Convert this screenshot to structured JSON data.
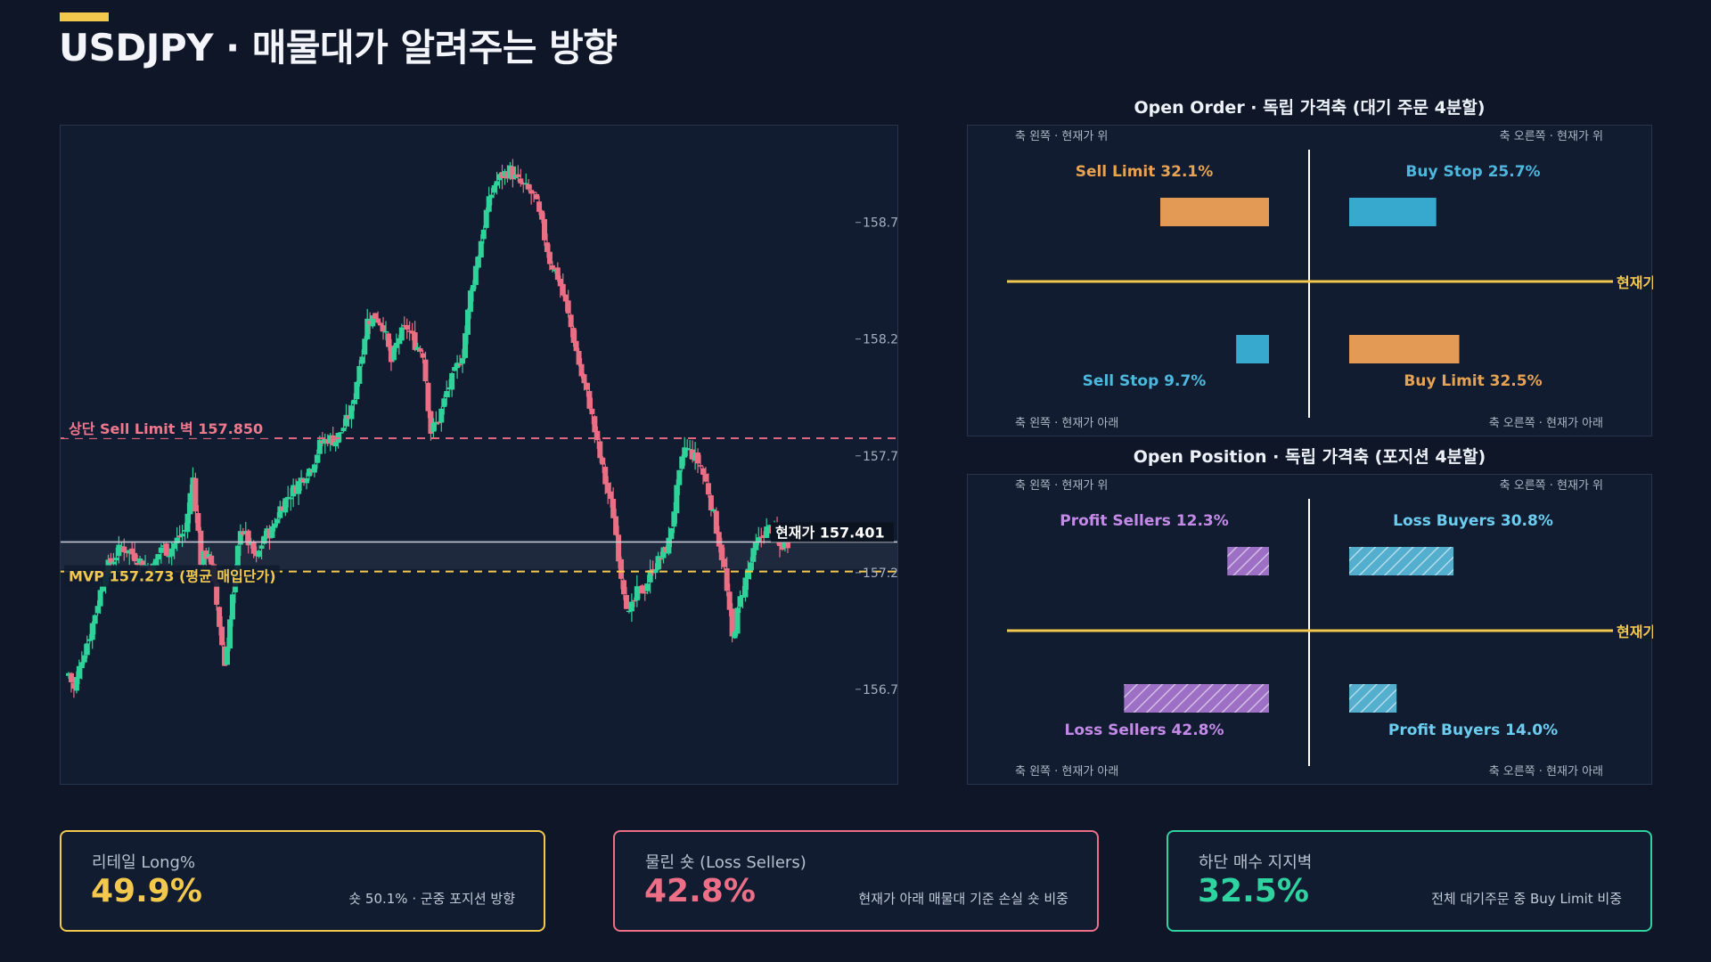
{
  "title": "USDJPY · 매물대가 알려주는 방향",
  "colors": {
    "background": "#0e1627",
    "accent": "#f2c94c",
    "bull": "#2fd39a",
    "bear": "#ea6f84",
    "orange": "#e29a55",
    "blue": "#37a9cf",
    "purple": "#b57ee0",
    "cyan": "#5fc8ea"
  },
  "chart_data": [
    {
      "type": "candlestick",
      "title": "",
      "yticks": [
        "158.785",
        "158.280",
        "157.774",
        "157.268",
        "156.763"
      ],
      "ylim": [
        156.5,
        159.05
      ],
      "current_price": 157.401,
      "current_price_label": "현재가 157.401",
      "sell_wall": 157.85,
      "sell_wall_label": "상단 Sell Limit 벽 157.850",
      "mvp": 157.273,
      "mvp_label": "MVP 157.273 (평균 매입단가)",
      "close_path": [
        156.87,
        156.76,
        156.9,
        157.0,
        157.14,
        157.28,
        157.33,
        157.38,
        157.36,
        157.33,
        157.3,
        157.29,
        157.38,
        157.36,
        157.41,
        157.45,
        157.68,
        157.32,
        157.36,
        157.13,
        156.87,
        157.16,
        157.47,
        157.4,
        157.32,
        157.43,
        157.45,
        157.55,
        157.6,
        157.64,
        157.69,
        157.73,
        157.82,
        157.85,
        157.84,
        157.9,
        157.97,
        158.17,
        158.36,
        158.38,
        158.34,
        158.18,
        158.29,
        158.33,
        158.26,
        158.22,
        157.88,
        157.93,
        158.05,
        158.13,
        158.22,
        158.48,
        158.65,
        158.83,
        158.95,
        158.99,
        159.01,
        158.96,
        158.93,
        158.9,
        158.77,
        158.62,
        158.55,
        158.43,
        158.28,
        158.12,
        158.0,
        157.82,
        157.66,
        157.52,
        157.26,
        157.08,
        157.18,
        157.2,
        157.29,
        157.33,
        157.4,
        157.62,
        157.81,
        157.78,
        157.73,
        157.62,
        157.46,
        157.28,
        156.98,
        157.15,
        157.28,
        157.38,
        157.45,
        157.46,
        157.38,
        157.4
      ]
    },
    {
      "type": "quadrant-bar",
      "title": "Open Order · 독립 가격축 (대기 주문 4분할)",
      "corner_labels": {
        "top_left": "축 왼쪽 · 현재가 위",
        "top_right": "축 오른쪽 · 현재가 위",
        "bottom_left": "축 왼쪽 · 현재가 아래",
        "bottom_right": "축 오른쪽 · 현재가 아래"
      },
      "axis_label": "현재가",
      "quadrants": {
        "top_left": {
          "name": "Sell Limit",
          "value": 32.1,
          "label": "Sell Limit 32.1%",
          "color": "#e29a55",
          "label_color": "#e7a352"
        },
        "top_right": {
          "name": "Buy Stop",
          "value": 25.7,
          "label": "Buy Stop 25.7%",
          "color": "#37a9cf",
          "label_color": "#4db8dd"
        },
        "bottom_left": {
          "name": "Sell Stop",
          "value": 9.7,
          "label": "Sell Stop 9.7%",
          "color": "#37a9cf",
          "label_color": "#4db8dd"
        },
        "bottom_right": {
          "name": "Buy Limit",
          "value": 32.5,
          "label": "Buy Limit 32.5%",
          "color": "#e29a55",
          "label_color": "#e7a352"
        }
      }
    },
    {
      "type": "quadrant-bar",
      "title": "Open Position · 독립 가격축 (포지션 4분할)",
      "corner_labels": {
        "top_left": "축 왼쪽 · 현재가 위",
        "top_right": "축 오른쪽 · 현재가 위",
        "bottom_left": "축 왼쪽 · 현재가 아래",
        "bottom_right": "축 오른쪽 · 현재가 아래"
      },
      "axis_label": "현재가",
      "quadrants": {
        "top_left": {
          "name": "Profit Sellers",
          "value": 12.3,
          "label": "Profit Sellers 12.3%",
          "color": "#b57ee0",
          "label_color": "#c48ae8"
        },
        "top_right": {
          "name": "Loss Buyers",
          "value": 30.8,
          "label": "Loss Buyers 30.8%",
          "color": "#5fc8ea",
          "label_color": "#6ccdf0"
        },
        "bottom_left": {
          "name": "Loss Sellers",
          "value": 42.8,
          "label": "Loss Sellers 42.8%",
          "color": "#b57ee0",
          "label_color": "#c48ae8"
        },
        "bottom_right": {
          "name": "Profit Buyers",
          "value": 14.0,
          "label": "Profit Buyers 14.0%",
          "color": "#5fc8ea",
          "label_color": "#6ccdf0"
        }
      }
    }
  ],
  "cards": [
    {
      "label": "리테일 Long%",
      "value": "49.9%",
      "desc": "숏 50.1% · 군중 포지션 방향",
      "color": "#f2c94c"
    },
    {
      "label": "물린 숏 (Loss Sellers)",
      "value": "42.8%",
      "desc": "현재가 아래 매물대 기준 손실 숏 비중",
      "color": "#ec6f87"
    },
    {
      "label": "하단 매수 지지벽",
      "value": "32.5%",
      "desc": "전체 대기주문 중 Buy Limit 비중",
      "color": "#2fd3a0"
    }
  ]
}
